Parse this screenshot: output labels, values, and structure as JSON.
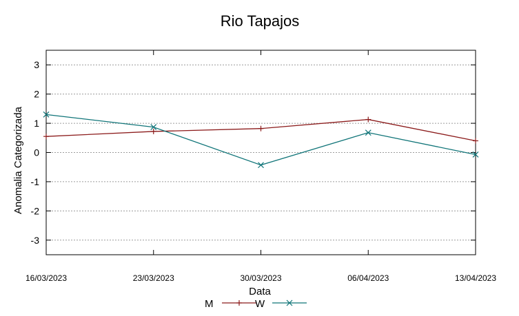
{
  "chart_data": {
    "type": "line",
    "title": "Rio Tapajos",
    "xlabel": "Data",
    "ylabel": "Anomalia Categorizada",
    "categories": [
      "16/03/2023",
      "23/03/2023",
      "30/03/2023",
      "06/04/2023",
      "13/04/2023"
    ],
    "ylim": [
      -3.5,
      3.5
    ],
    "yticks": [
      "-3",
      "-2",
      "-1",
      "0",
      "1",
      "2",
      "3"
    ],
    "grid": true,
    "legend_position": "bottom-center",
    "series": [
      {
        "name": "M",
        "marker": "+",
        "color": "#8b1a1a",
        "values": [
          0.55,
          0.72,
          0.82,
          1.13,
          0.4
        ]
      },
      {
        "name": "W",
        "marker": "x",
        "color": "#0f7478",
        "values": [
          1.3,
          0.87,
          -0.43,
          0.68,
          -0.07
        ]
      }
    ]
  }
}
